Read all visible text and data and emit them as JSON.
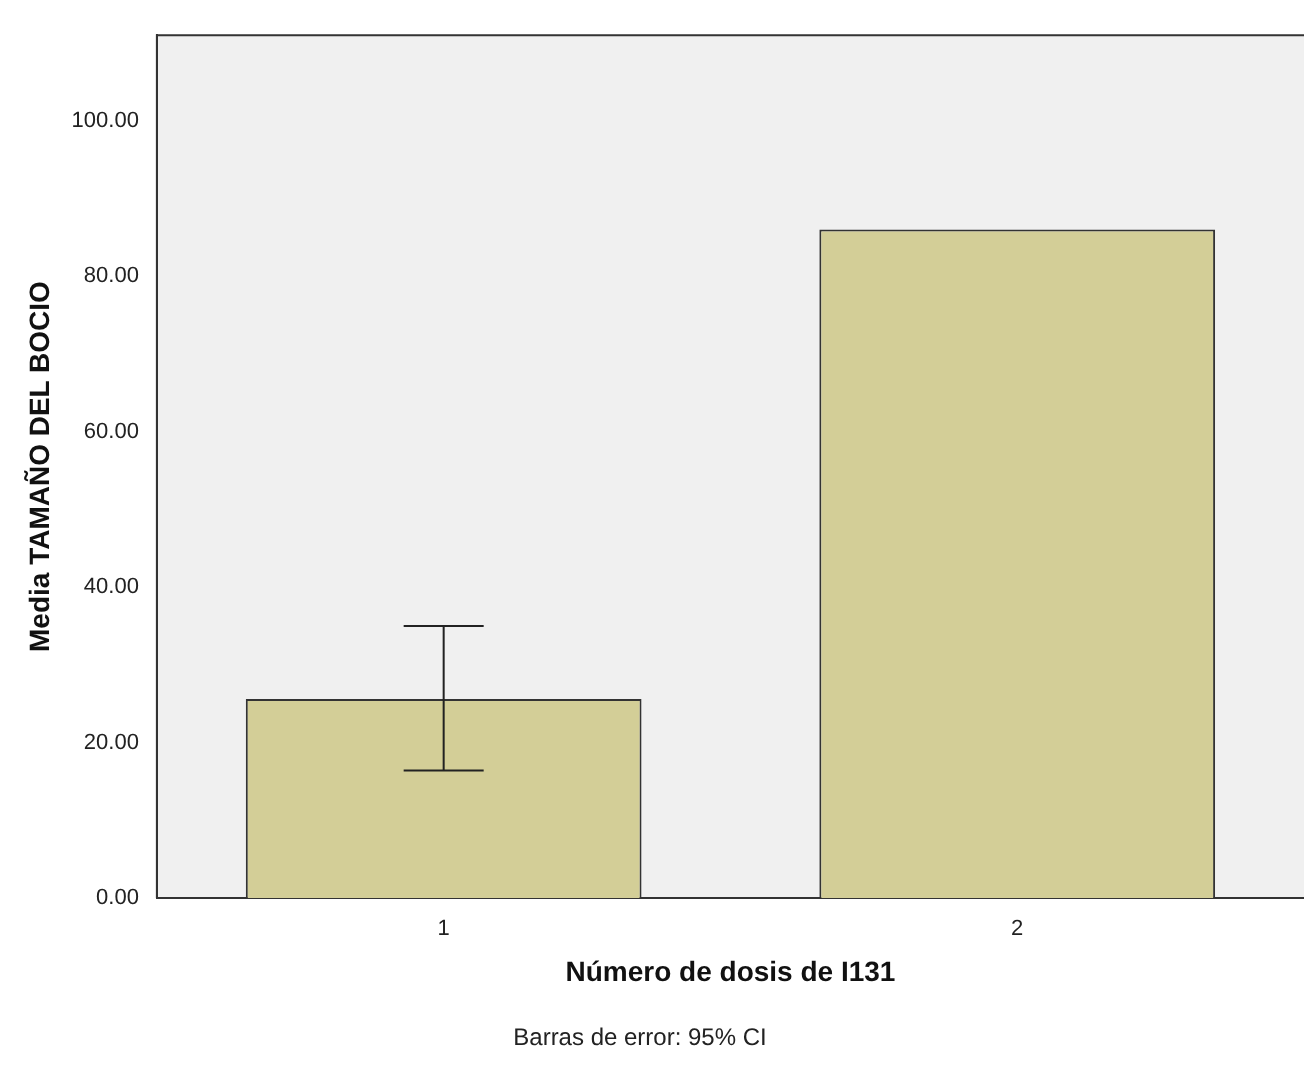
{
  "chart_data": {
    "type": "bar",
    "xlabel": "Número de dosis de I131",
    "ylabel": "Media TAMAÑO DEL BOCIO",
    "categories": [
      "1",
      "2"
    ],
    "values": [
      25.6,
      86.0
    ],
    "errors": [
      [
        16.4,
        35.0
      ],
      null
    ],
    "color": "#d3ce97",
    "ylim": [
      0,
      111
    ],
    "yticks": [
      {
        "value": 0,
        "label": "0.00"
      },
      {
        "value": 20,
        "label": "20.00"
      },
      {
        "value": 40,
        "label": "40.00"
      },
      {
        "value": 60,
        "label": "60.00"
      },
      {
        "value": 80,
        "label": "80.00"
      },
      {
        "value": 100,
        "label": "100.00"
      }
    ],
    "grid": false,
    "legend": false,
    "annotations": [
      "Barras de error: 95% CI"
    ]
  }
}
